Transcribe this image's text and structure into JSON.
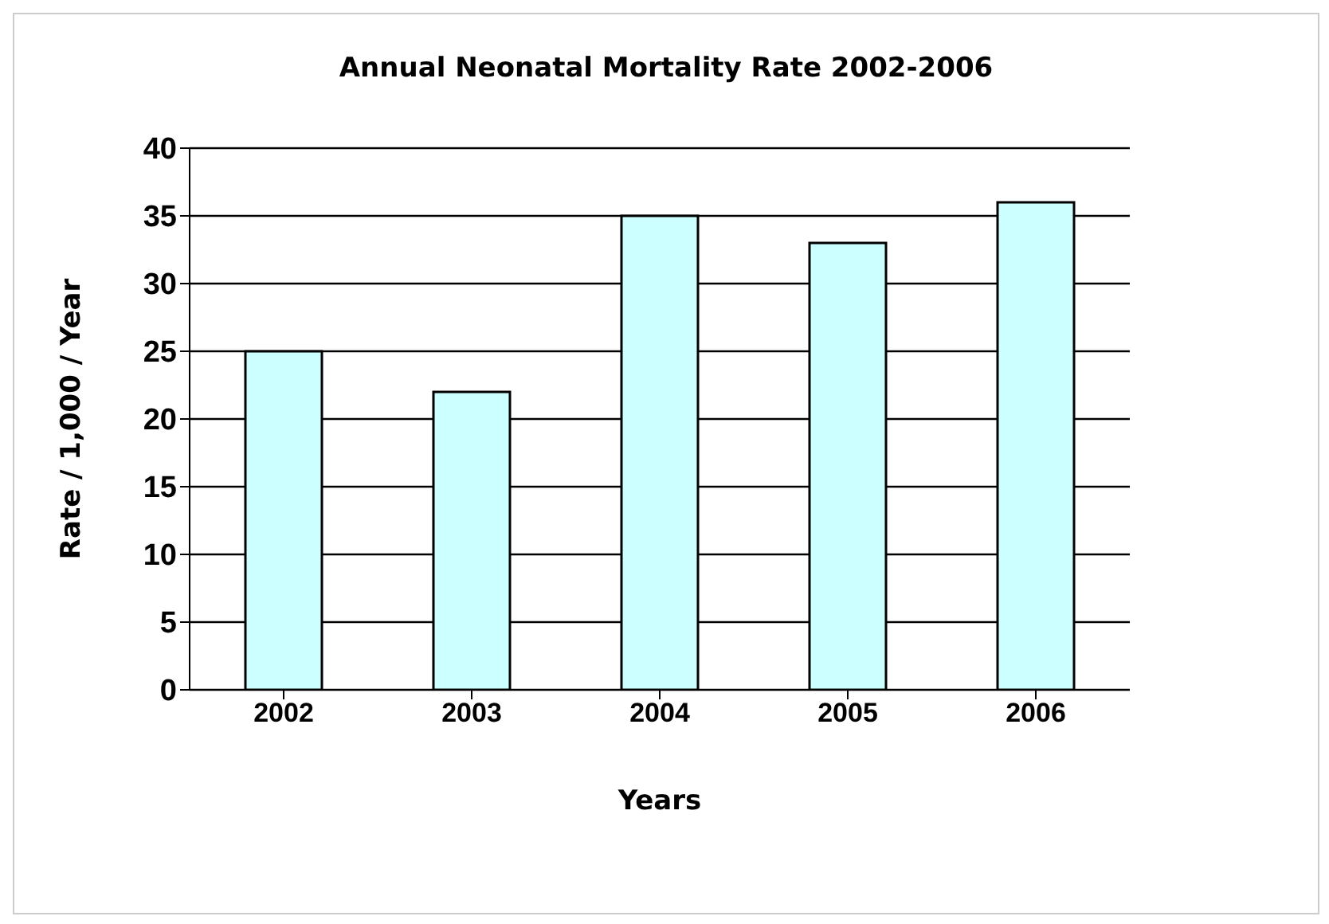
{
  "chart_data": {
    "type": "bar",
    "title": "Annual Neonatal Mortality Rate 2002-2006",
    "xlabel": "Years",
    "ylabel": "Rate / 1,000 / Year",
    "categories": [
      "2002",
      "2003",
      "2004",
      "2005",
      "2006"
    ],
    "values": [
      25,
      22,
      35,
      33,
      36
    ],
    "color": "#ccffff",
    "ylim": [
      0,
      40
    ],
    "yticks": [
      0,
      5,
      10,
      15,
      20,
      25,
      30,
      35,
      40
    ],
    "grid": "y"
  }
}
